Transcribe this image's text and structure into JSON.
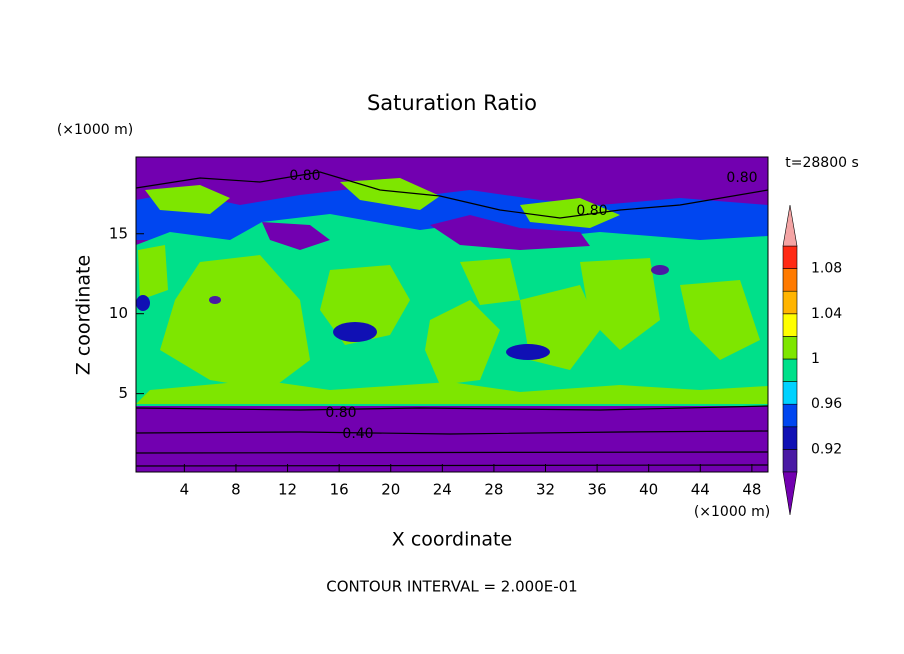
{
  "chart_data": {
    "type": "contour",
    "title": "Saturation Ratio",
    "x_label": "X coordinate",
    "y_label": "Z coordinate",
    "x_unit": "(×1000 m)",
    "y_unit": "(×1000 m)",
    "time_label": "t=28800 s",
    "footer": "CONTOUR INTERVAL = 2.000E-01",
    "xlim": [
      0.25,
      49.25
    ],
    "ylim": [
      0.1,
      19.8
    ],
    "xticks": [
      4,
      8,
      12,
      16,
      20,
      24,
      28,
      32,
      36,
      40,
      44,
      48
    ],
    "yticks": [
      5,
      10,
      15
    ],
    "contour_labels": [
      {
        "value": 0.8,
        "label": "0.80"
      },
      {
        "value": 0.8,
        "label": "0.80"
      },
      {
        "value": 0.8,
        "label": "0.80"
      },
      {
        "value": 0.8,
        "label": "0.80"
      },
      {
        "value": 0.4,
        "label": "0.40"
      }
    ],
    "colorbar": {
      "levels": [
        0.9,
        0.92,
        0.94,
        0.96,
        0.98,
        1,
        1.02,
        1.04,
        1.06,
        1.08,
        1.1
      ],
      "ticks": [
        0.92,
        0.96,
        1,
        1.04,
        1.08
      ],
      "colors": [
        "#7200b0",
        "#4a1aa4",
        "#1010b4",
        "#0046f0",
        "#00d2ff",
        "#00e08a",
        "#7ee600",
        "#ffff00",
        "#ffb400",
        "#ff7a00",
        "#ff2a14",
        "#f4a4a4"
      ]
    }
  }
}
